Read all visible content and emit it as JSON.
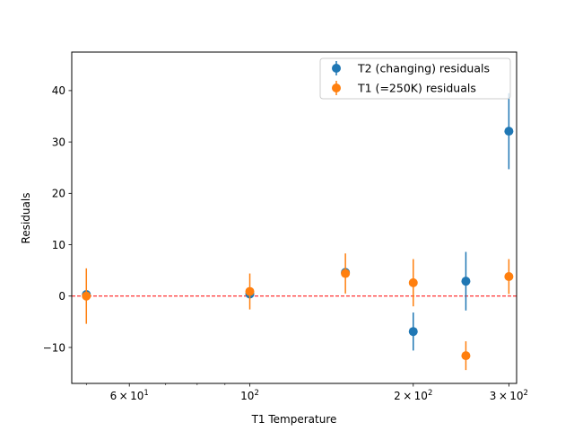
{
  "chart_data": {
    "type": "scatter",
    "title": "",
    "xlabel": "T1 Temperature",
    "ylabel": "Residuals",
    "xscale": "log",
    "xlim": [
      47,
      310
    ],
    "ylim": [
      -17,
      47.5
    ],
    "grid": false,
    "legend_position": "upper right",
    "x_major_ticks": [
      {
        "value": 60,
        "mantissa": "6",
        "base": "10",
        "exp": "1"
      },
      {
        "value": 100,
        "mantissa": "",
        "base": "10",
        "exp": "2"
      },
      {
        "value": 200,
        "mantissa": "2",
        "base": "10",
        "exp": "2"
      },
      {
        "value": 300,
        "mantissa": "3",
        "base": "10",
        "exp": "2"
      }
    ],
    "x_minor_ticks": [
      50,
      70,
      80,
      90
    ],
    "y_ticks": [
      {
        "value": -10,
        "label": "−10"
      },
      {
        "value": 0,
        "label": "0"
      },
      {
        "value": 10,
        "label": "10"
      },
      {
        "value": 20,
        "label": "20"
      },
      {
        "value": 30,
        "label": "30"
      },
      {
        "value": 40,
        "label": "40"
      }
    ],
    "reference_line": {
      "y": 0,
      "color": "#ff0000",
      "style": "dashed"
    },
    "series": [
      {
        "name": "T2 (changing) residuals",
        "color": "#1f77b4",
        "points": [
          {
            "x": 50,
            "y": 0.3,
            "err": 0.4
          },
          {
            "x": 100,
            "y": 0.4,
            "err": 0.3
          },
          {
            "x": 150,
            "y": 4.6,
            "err": 0.4
          },
          {
            "x": 200,
            "y": -6.9,
            "err": 3.7
          },
          {
            "x": 250,
            "y": 2.9,
            "err": 5.7
          },
          {
            "x": 300,
            "y": 32.1,
            "err": 7.4
          }
        ]
      },
      {
        "name": "T1 (=250K) residuals",
        "color": "#ff7f0e",
        "points": [
          {
            "x": 50,
            "y": 0.0,
            "err": 5.4
          },
          {
            "x": 100,
            "y": 0.9,
            "err": 3.5
          },
          {
            "x": 150,
            "y": 4.4,
            "err": 3.9
          },
          {
            "x": 200,
            "y": 2.6,
            "err": 4.6
          },
          {
            "x": 250,
            "y": -11.6,
            "err": 2.8
          },
          {
            "x": 300,
            "y": 3.8,
            "err": 3.4
          }
        ]
      }
    ]
  }
}
